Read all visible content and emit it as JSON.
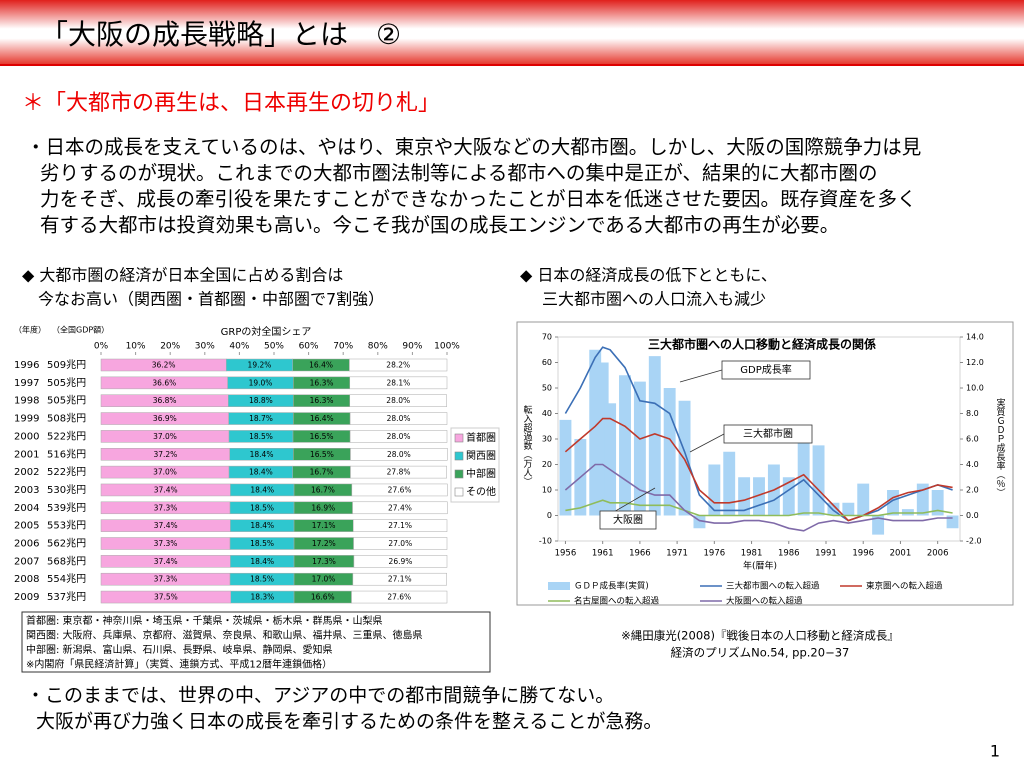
{
  "header": {
    "title": "「大阪の成長戦略」とは　②"
  },
  "subtitle": "＊「大都市の再生は、日本再生の切り札」",
  "paragraph": [
    "・日本の成長を支えているのは、やはり、東京や大阪などの大都市圏。しかし、大阪の国際競争力は見",
    "劣りするのが現状。これまでの大都市圏法制等による都市への集中是正が、結果的に大都市圏の",
    "力をそぎ、成長の牽引役を果たすことができなかったことが日本を低迷させた要因。既存資産を多く",
    "有する大都市は投資効果も高い。今こそ我が国の成長エンジンである大都市の再生が必要。"
  ],
  "chart_data": [
    {
      "type": "bar",
      "orientation": "horizontal",
      "stacked": true,
      "heading": [
        "◆ 大都市圏の経済が日本全国に占める割合は",
        "今なお高い（関西圏・首都圏・中部圏で7割強）"
      ],
      "title": "GRPの対全国シェア",
      "column_labels": [
        "（年度）",
        "（全国GDP額）"
      ],
      "categories": [
        "1996",
        "1997",
        "1998",
        "1999",
        "2000",
        "2001",
        "2002",
        "2003",
        "2004",
        "2005",
        "2006",
        "2007",
        "2008",
        "2009"
      ],
      "gdp_labels": [
        "509兆円",
        "505兆円",
        "505兆円",
        "508兆円",
        "522兆円",
        "516兆円",
        "522兆円",
        "530兆円",
        "539兆円",
        "553兆円",
        "562兆円",
        "568兆円",
        "554兆円",
        "537兆円"
      ],
      "xlim": [
        0,
        100
      ],
      "xticks": [
        {
          "value": 0,
          "label": "0%"
        },
        {
          "value": 10,
          "label": "10%"
        },
        {
          "value": 20,
          "label": "20%"
        },
        {
          "value": 30,
          "label": "30%"
        },
        {
          "value": 40,
          "label": "40%"
        },
        {
          "value": 50,
          "label": "50%"
        },
        {
          "value": 60,
          "label": "60%"
        },
        {
          "value": 70,
          "label": "70%"
        },
        {
          "value": 80,
          "label": "80%"
        },
        {
          "value": 90,
          "label": "90%"
        },
        {
          "value": 100,
          "label": "100%"
        }
      ],
      "series": [
        {
          "name": "首都圏",
          "color": "#f7a6df",
          "values": [
            36.2,
            36.6,
            36.8,
            36.9,
            37.0,
            37.2,
            37.0,
            37.4,
            37.3,
            37.4,
            37.3,
            37.4,
            37.3,
            37.5
          ],
          "value_labels": [
            "36.2%",
            "36.6%",
            "36.8%",
            "36.9%",
            "37.0%",
            "37.2%",
            "37.0%",
            "37.4%",
            "37.3%",
            "37.4%",
            "37.3%",
            "37.4%",
            "37.3%",
            "37.5%"
          ]
        },
        {
          "name": "関西圏",
          "color": "#2ec7cf",
          "values": [
            19.2,
            19.0,
            18.8,
            18.7,
            18.5,
            18.4,
            18.4,
            18.4,
            18.5,
            18.4,
            18.5,
            18.4,
            18.5,
            18.3
          ],
          "value_labels": [
            "19.2%",
            "19.0%",
            "18.8%",
            "18.7%",
            "18.5%",
            "18.4%",
            "18.4%",
            "18.4%",
            "18.5%",
            "18.4%",
            "18.5%",
            "18.4%",
            "18.5%",
            "18.3%"
          ]
        },
        {
          "name": "中部圏",
          "color": "#3aa35a",
          "values": [
            16.4,
            16.3,
            16.3,
            16.4,
            16.5,
            16.5,
            16.7,
            16.7,
            16.9,
            17.1,
            17.2,
            17.3,
            17.0,
            16.6
          ],
          "value_labels": [
            "16.4%",
            "16.3%",
            "16.3%",
            "16.4%",
            "16.5%",
            "16.5%",
            "16.7%",
            "16.7%",
            "16.9%",
            "17.1%",
            "17.2%",
            "17.3%",
            "17.0%",
            "16.6%"
          ]
        },
        {
          "name": "その他",
          "color": "#ffffff",
          "values": [
            28.2,
            28.1,
            28.0,
            28.0,
            28.0,
            28.0,
            27.8,
            27.6,
            27.4,
            27.1,
            27.0,
            26.9,
            27.1,
            27.6
          ],
          "value_labels": [
            "28.2%",
            "28.1%",
            "28.0%",
            "28.0%",
            "28.0%",
            "28.0%",
            "27.8%",
            "27.6%",
            "27.4%",
            "27.1%",
            "27.0%",
            "26.9%",
            "27.1%",
            "27.6%"
          ]
        }
      ]
    },
    {
      "type": "line",
      "heading": [
        "◆ 日本の経済成長の低下とともに、",
        "三大都市圏への人口流入も減少"
      ],
      "title": "三大都市圏への人口移動と経済成長の関係",
      "ylabel": "転入超過数（万人）",
      "y2label": "実質ＧＤＰ成長率（％）",
      "xlabel": "年(暦年)",
      "x": [
        1956,
        1958,
        1960,
        1961,
        1962,
        1964,
        1966,
        1968,
        1970,
        1972,
        1974,
        1976,
        1978,
        1980,
        1982,
        1984,
        1986,
        1988,
        1990,
        1992,
        1994,
        1996,
        1998,
        2000,
        2002,
        2004,
        2006,
        2008
      ],
      "xlim": [
        1955,
        2009
      ],
      "xticks": [
        1956,
        1961,
        1966,
        1971,
        1976,
        1981,
        1986,
        1991,
        1996,
        2001,
        2006
      ],
      "ylim": [
        -10,
        70
      ],
      "yticks": [
        -10,
        0,
        10,
        20,
        30,
        40,
        50,
        60,
        70
      ],
      "y2lim": [
        -2,
        14
      ],
      "y2ticks": [
        {
          "value": -2,
          "label": "-2.0"
        },
        {
          "value": 0,
          "label": "0.0"
        },
        {
          "value": 2,
          "label": "2.0"
        },
        {
          "value": 4,
          "label": "4.0"
        },
        {
          "value": 6,
          "label": "6.0"
        },
        {
          "value": 8,
          "label": "8.0"
        },
        {
          "value": 10,
          "label": "10.0"
        },
        {
          "value": 12,
          "label": "12.0"
        },
        {
          "value": 14,
          "label": "14.0"
        }
      ],
      "series": [
        {
          "name": "ＧＤＰ成長率(実質)",
          "type": "bar",
          "axis": "y2",
          "color": "#a9d4f5",
          "values": [
            7.5,
            6,
            13,
            12,
            8.8,
            11,
            10.5,
            12.5,
            10,
            9,
            -1,
            4,
            5,
            3,
            3,
            4,
            3,
            6,
            5.5,
            1,
            1,
            2.5,
            -1.5,
            2,
            0.5,
            2.5,
            2,
            -1
          ]
        },
        {
          "name": "三大都市圏への転入超過",
          "color": "#3b6fb6",
          "values": [
            40,
            50,
            62,
            66,
            65,
            58,
            45,
            44,
            40,
            25,
            8,
            2,
            2,
            2,
            4,
            6,
            10,
            14,
            8,
            2,
            -2,
            0,
            2,
            6,
            8,
            10,
            12,
            10
          ]
        },
        {
          "name": "東京圏への転入超過",
          "color": "#c0392b",
          "values": [
            25,
            30,
            35,
            38,
            38,
            35,
            30,
            32,
            30,
            22,
            10,
            5,
            5,
            6,
            8,
            10,
            13,
            16,
            10,
            4,
            -2,
            0,
            3,
            7,
            9,
            10,
            12,
            11
          ]
        },
        {
          "name": "名古屋圏への転入超過",
          "color": "#8fbc5a",
          "values": [
            2,
            3,
            5,
            6,
            5,
            5,
            4,
            4,
            4,
            2,
            0,
            0,
            0,
            0,
            0,
            0,
            0,
            1,
            1,
            0,
            0,
            0,
            0,
            1,
            1,
            1,
            2,
            1
          ]
        },
        {
          "name": "大阪圏への転入超過",
          "color": "#7f6aa8",
          "values": [
            10,
            15,
            20,
            20,
            18,
            14,
            10,
            8,
            8,
            2,
            -2,
            -3,
            -3,
            -2,
            -2,
            -3,
            -5,
            -6,
            -3,
            -2,
            -3,
            -2,
            -1,
            -2,
            -2,
            -2,
            -1,
            -1
          ]
        }
      ],
      "annotations": [
        "GDP成長率",
        "三大都市圏",
        "大阪圏"
      ]
    }
  ],
  "notes": [
    "首都圏: 東京都・神奈川県・埼玉県・千葉県・茨城県・栃木県・群馬県・山梨県",
    "関西圏: 大阪府、兵庫県、京都府、滋賀県、奈良県、和歌山県、福井県、三重県、徳島県",
    "中部圏: 新潟県、富山県、石川県、長野県、岐阜県、静岡県、愛知県",
    "※内閣府「県民経済計算」（実質、連鎖方式、平成12暦年連鎖価格）"
  ],
  "citation": [
    "※縄田康光(2008)『戦後日本の人口移動と経済成長』",
    "経済のプリズムNo.54, pp.20−37"
  ],
  "conclusion": [
    "・このままでは、世界の中、アジアの中での都市間競争に勝てない。",
    "大阪が再び力強く日本の成長を牽引するための条件を整えることが急務。"
  ],
  "page_number": 1
}
